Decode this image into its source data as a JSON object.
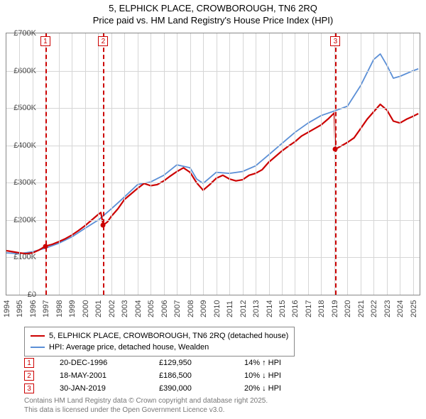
{
  "title": {
    "line1": "5, ELPHICK PLACE, CROWBOROUGH, TN6 2RQ",
    "line2": "Price paid vs. HM Land Registry's House Price Index (HPI)"
  },
  "chart": {
    "type": "line",
    "background_color": "#ffffff",
    "grid_color": "#d6d6d6",
    "border_color": "#888888",
    "x": {
      "min": 1994,
      "max": 2025.5,
      "ticks": [
        1994,
        1995,
        1996,
        1997,
        1998,
        1999,
        2000,
        2001,
        2002,
        2003,
        2004,
        2005,
        2006,
        2007,
        2008,
        2009,
        2010,
        2011,
        2012,
        2013,
        2014,
        2015,
        2016,
        2017,
        2018,
        2019,
        2020,
        2021,
        2022,
        2023,
        2024,
        2025
      ]
    },
    "y": {
      "min": 0,
      "max": 700000,
      "ticks": [
        0,
        100000,
        200000,
        300000,
        400000,
        500000,
        600000,
        700000
      ],
      "tick_labels": [
        "£0",
        "£100K",
        "£200K",
        "£300K",
        "£400K",
        "£500K",
        "£600K",
        "£700K"
      ]
    },
    "series": [
      {
        "name": "subject",
        "label": "5, ELPHICK PLACE, CROWBOROUGH, TN6 2RQ (detached house)",
        "color": "#cc0000",
        "width": 2.2,
        "points": [
          [
            1994,
            118000
          ],
          [
            1994.5,
            115000
          ],
          [
            1995,
            112000
          ],
          [
            1995.5,
            110000
          ],
          [
            1996,
            112000
          ],
          [
            1996.5,
            120000
          ],
          [
            1996.97,
            129950
          ],
          [
            1997.5,
            135000
          ],
          [
            1998,
            142000
          ],
          [
            1998.5,
            150000
          ],
          [
            1999,
            160000
          ],
          [
            1999.5,
            172000
          ],
          [
            2000,
            185000
          ],
          [
            2000.5,
            200000
          ],
          [
            2001,
            215000
          ],
          [
            2001.2,
            220000
          ],
          [
            2001.38,
            186500
          ],
          [
            2001.7,
            195000
          ],
          [
            2002,
            210000
          ],
          [
            2002.5,
            230000
          ],
          [
            2003,
            255000
          ],
          [
            2003.5,
            270000
          ],
          [
            2004,
            285000
          ],
          [
            2004.5,
            298000
          ],
          [
            2005,
            292000
          ],
          [
            2005.5,
            295000
          ],
          [
            2006,
            305000
          ],
          [
            2006.5,
            318000
          ],
          [
            2007,
            330000
          ],
          [
            2007.5,
            340000
          ],
          [
            2008,
            328000
          ],
          [
            2008.5,
            300000
          ],
          [
            2009,
            280000
          ],
          [
            2009.5,
            295000
          ],
          [
            2010,
            312000
          ],
          [
            2010.5,
            320000
          ],
          [
            2011,
            310000
          ],
          [
            2011.5,
            305000
          ],
          [
            2012,
            308000
          ],
          [
            2012.5,
            320000
          ],
          [
            2013,
            325000
          ],
          [
            2013.5,
            335000
          ],
          [
            2014,
            355000
          ],
          [
            2014.5,
            370000
          ],
          [
            2015,
            385000
          ],
          [
            2015.5,
            398000
          ],
          [
            2016,
            410000
          ],
          [
            2016.5,
            425000
          ],
          [
            2017,
            435000
          ],
          [
            2017.5,
            445000
          ],
          [
            2018,
            455000
          ],
          [
            2018.5,
            470000
          ],
          [
            2019,
            487000
          ],
          [
            2019.08,
            390000
          ],
          [
            2019.5,
            398000
          ],
          [
            2020,
            408000
          ],
          [
            2020.5,
            420000
          ],
          [
            2021,
            445000
          ],
          [
            2021.5,
            470000
          ],
          [
            2022,
            490000
          ],
          [
            2022.5,
            510000
          ],
          [
            2023,
            495000
          ],
          [
            2023.5,
            465000
          ],
          [
            2024,
            460000
          ],
          [
            2024.5,
            470000
          ],
          [
            2025,
            478000
          ],
          [
            2025.4,
            485000
          ]
        ]
      },
      {
        "name": "hpi",
        "label": "HPI: Average price, detached house, Wealden",
        "color": "#5b8fd6",
        "width": 1.8,
        "points": [
          [
            1994,
            112000
          ],
          [
            1995,
            110000
          ],
          [
            1996,
            115000
          ],
          [
            1997,
            125000
          ],
          [
            1998,
            138000
          ],
          [
            1999,
            155000
          ],
          [
            2000,
            178000
          ],
          [
            2001,
            200000
          ],
          [
            2002,
            230000
          ],
          [
            2003,
            262000
          ],
          [
            2004,
            295000
          ],
          [
            2005,
            302000
          ],
          [
            2006,
            320000
          ],
          [
            2007,
            348000
          ],
          [
            2008,
            340000
          ],
          [
            2008.5,
            310000
          ],
          [
            2009,
            298000
          ],
          [
            2010,
            328000
          ],
          [
            2011,
            325000
          ],
          [
            2012,
            330000
          ],
          [
            2013,
            345000
          ],
          [
            2014,
            375000
          ],
          [
            2015,
            405000
          ],
          [
            2016,
            435000
          ],
          [
            2017,
            460000
          ],
          [
            2018,
            480000
          ],
          [
            2019,
            492000
          ],
          [
            2020,
            505000
          ],
          [
            2021,
            560000
          ],
          [
            2022,
            630000
          ],
          [
            2022.5,
            645000
          ],
          [
            2023,
            615000
          ],
          [
            2023.5,
            580000
          ],
          [
            2024,
            585000
          ],
          [
            2025,
            600000
          ],
          [
            2025.4,
            605000
          ]
        ]
      }
    ],
    "sale_markers": [
      {
        "n": "1",
        "year": 1996.97,
        "price": 129950
      },
      {
        "n": "2",
        "year": 2001.38,
        "price": 186500
      },
      {
        "n": "3",
        "year": 2019.08,
        "price": 390000
      }
    ]
  },
  "legend": {
    "items": [
      {
        "color": "#cc0000",
        "label": "5, ELPHICK PLACE, CROWBOROUGH, TN6 2RQ (detached house)"
      },
      {
        "color": "#5b8fd6",
        "label": "HPI: Average price, detached house, Wealden"
      }
    ]
  },
  "sales": [
    {
      "n": "1",
      "date": "20-DEC-1996",
      "price": "£129,950",
      "delta": "14% ↑ HPI"
    },
    {
      "n": "2",
      "date": "18-MAY-2001",
      "price": "£186,500",
      "delta": "10% ↓ HPI"
    },
    {
      "n": "3",
      "date": "30-JAN-2019",
      "price": "£390,000",
      "delta": "20% ↓ HPI"
    }
  ],
  "footer": {
    "line1": "Contains HM Land Registry data © Crown copyright and database right 2025.",
    "line2": "This data is licensed under the Open Government Licence v3.0."
  },
  "style": {
    "title_fontsize": 13,
    "tick_fontsize": 11,
    "legend_fontsize": 11,
    "footer_fontsize": 10,
    "footer_color": "#777777",
    "sale_line_style": "dashed",
    "sale_line_color": "#cc0000"
  }
}
